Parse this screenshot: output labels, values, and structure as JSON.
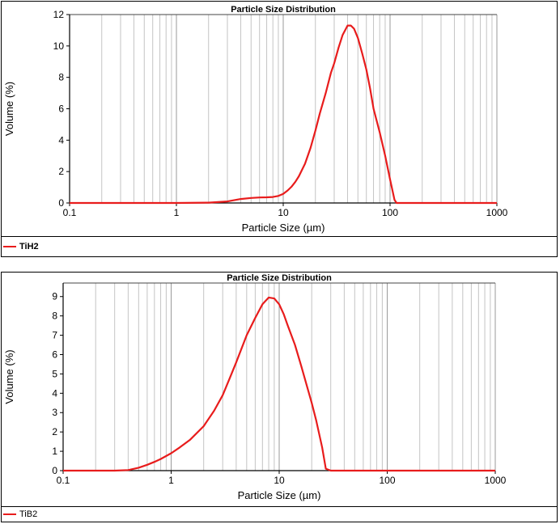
{
  "chart_data": [
    {
      "type": "line",
      "title": "Particle Size Distribution",
      "xlabel": "Particle Size (µm)",
      "ylabel": "Volume (%)",
      "x_scale": "log",
      "xlim": [
        0.1,
        1000
      ],
      "ylim": [
        0,
        12
      ],
      "x_ticks": [
        "0.1",
        "1",
        "10",
        "100",
        "1000"
      ],
      "y_ticks": [
        "0",
        "2",
        "4",
        "6",
        "8",
        "10",
        "12"
      ],
      "grid": "vertical",
      "legend": "bottom-left",
      "series": [
        {
          "name": "TiH2",
          "color": "#e81c1c",
          "x": [
            0.1,
            1,
            2,
            3,
            4,
            5,
            6,
            7,
            8,
            9,
            10,
            11,
            12,
            13,
            14,
            16,
            18,
            20,
            22,
            25,
            28,
            30,
            33,
            36,
            40,
            43,
            46,
            50,
            55,
            60,
            65,
            70,
            80,
            90,
            100,
            110,
            115,
            120,
            200,
            1000
          ],
          "y": [
            0,
            0,
            0.02,
            0.1,
            0.25,
            0.32,
            0.35,
            0.36,
            0.38,
            0.45,
            0.58,
            0.8,
            1.05,
            1.35,
            1.7,
            2.5,
            3.5,
            4.6,
            5.7,
            7.0,
            8.3,
            8.9,
            9.9,
            10.7,
            11.3,
            11.3,
            11.1,
            10.5,
            9.5,
            8.5,
            7.3,
            6.0,
            4.5,
            3.0,
            1.5,
            0.2,
            0,
            0,
            0,
            0
          ]
        }
      ]
    },
    {
      "type": "line",
      "title": "Particle Size Distribution",
      "xlabel": "Particle Size (µm)",
      "ylabel": "Volume (%)",
      "x_scale": "log",
      "xlim": [
        0.1,
        1000
      ],
      "ylim": [
        0,
        9.7
      ],
      "x_ticks": [
        "0.1",
        "1",
        "10",
        "100",
        "1000"
      ],
      "y_ticks": [
        "0",
        "1",
        "2",
        "3",
        "4",
        "5",
        "6",
        "7",
        "8",
        "9"
      ],
      "grid": "vertical",
      "legend": "bottom-left",
      "series": [
        {
          "name": "TiB2",
          "color": "#e81c1c",
          "x": [
            0.1,
            0.3,
            0.4,
            0.5,
            0.6,
            0.7,
            0.8,
            1,
            1.2,
            1.5,
            2,
            2.5,
            3,
            3.5,
            4,
            5,
            6,
            7,
            8,
            9,
            10,
            11,
            12,
            14,
            16,
            18,
            20,
            22,
            25,
            27,
            30,
            100,
            1000
          ],
          "y": [
            0,
            0,
            0.03,
            0.15,
            0.3,
            0.45,
            0.6,
            0.9,
            1.2,
            1.6,
            2.3,
            3.1,
            3.9,
            4.8,
            5.6,
            7.0,
            7.9,
            8.6,
            8.95,
            8.9,
            8.6,
            8.1,
            7.5,
            6.5,
            5.4,
            4.4,
            3.5,
            2.6,
            1.2,
            0.1,
            0,
            0,
            0
          ]
        }
      ]
    }
  ]
}
